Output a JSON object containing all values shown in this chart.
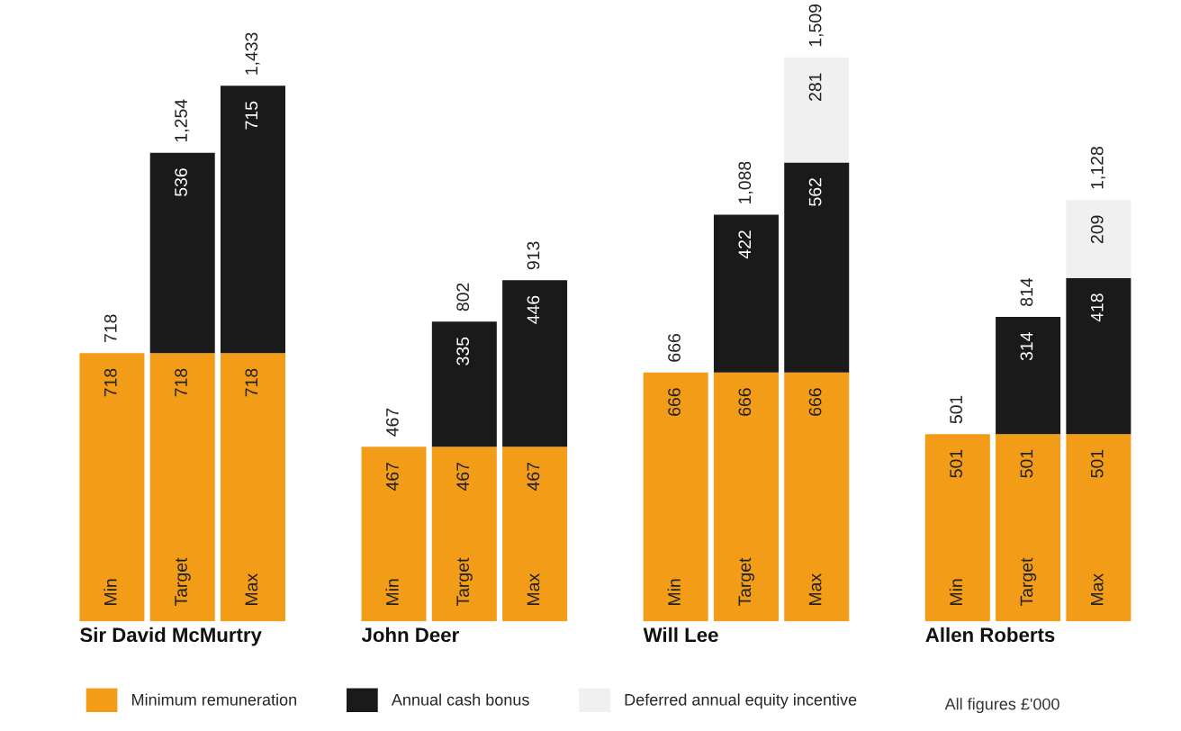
{
  "chart_data": {
    "type": "bar",
    "stacked": true,
    "data_labels": true,
    "legend": "bottom",
    "categories": [
      "Min",
      "Target",
      "Max",
      null,
      "Min",
      "Target",
      "Max",
      null,
      "Min",
      "Target",
      "Max",
      null,
      "Min",
      "Target",
      "Max"
    ],
    "series": [
      {
        "name": "Minimum remuneration",
        "color": "#f39c18",
        "values": [
          718,
          718,
          718,
          null,
          467,
          467,
          467,
          null,
          666,
          666,
          666,
          null,
          501,
          501,
          501
        ]
      },
      {
        "name": "Annual cash bonus",
        "color": "#1a1a1a",
        "values": [
          null,
          536,
          715,
          null,
          null,
          335,
          446,
          null,
          null,
          422,
          562,
          null,
          null,
          314,
          418
        ]
      },
      {
        "name": "Deferred annual equity incentive",
        "color": "#f0f0f0",
        "values": [
          null,
          null,
          null,
          null,
          null,
          null,
          null,
          null,
          null,
          null,
          281,
          null,
          null,
          null,
          209
        ]
      }
    ],
    "totals": [
      "718",
      "1,254",
      "1,433",
      null,
      "467",
      "802",
      "913",
      null,
      "666",
      "1,088",
      "1,509",
      null,
      "501",
      "814",
      "1,128"
    ],
    "annotations": [
      "Sir David McMurtry",
      "John Deer",
      "Will Lee",
      "Allen Roberts",
      "All figures £'000"
    ]
  }
}
